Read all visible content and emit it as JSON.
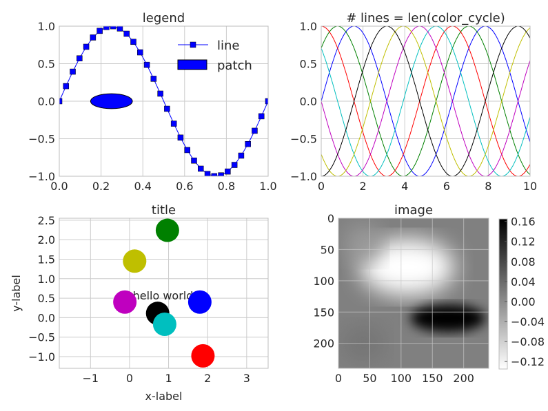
{
  "chart_data": [
    {
      "type": "line",
      "title": "legend",
      "xlim": [
        0,
        1
      ],
      "ylim": [
        -1,
        1
      ],
      "x_ticks": [
        "0.0",
        "0.2",
        "0.4",
        "0.6",
        "0.8",
        "1.0"
      ],
      "y_ticks": [
        "1.0",
        "0.5",
        "0.0",
        "−0.5",
        "−1.0"
      ],
      "grid": true,
      "legend": {
        "position": "top-right",
        "entries": [
          "line",
          "patch"
        ]
      },
      "series": [
        {
          "name": "line",
          "color": "#0000ff",
          "marker": "square",
          "x": [
            0,
            0.0323,
            0.0645,
            0.0968,
            0.129,
            0.1613,
            0.1935,
            0.2258,
            0.2581,
            0.2903,
            0.3226,
            0.3548,
            0.3871,
            0.4194,
            0.4516,
            0.4839,
            0.5161,
            0.5484,
            0.5806,
            0.6129,
            0.6452,
            0.6774,
            0.7097,
            0.7419,
            0.7742,
            0.8065,
            0.8387,
            0.871,
            0.9032,
            0.9355,
            0.9677,
            1.0
          ],
          "y": [
            0,
            0.201,
            0.394,
            0.571,
            0.725,
            0.849,
            0.937,
            0.988,
            0.999,
            0.969,
            0.899,
            0.791,
            0.651,
            0.485,
            0.299,
            0.101,
            -0.101,
            -0.299,
            -0.485,
            -0.651,
            -0.791,
            -0.899,
            -0.969,
            -0.999,
            -0.988,
            -0.937,
            -0.849,
            -0.725,
            -0.571,
            -0.394,
            -0.201,
            0
          ]
        }
      ],
      "patch": {
        "name": "patch",
        "shape": "ellipse",
        "center": [
          0.25,
          0
        ],
        "width": 0.2,
        "height": 0.2,
        "color": "#0000ff"
      }
    },
    {
      "type": "line",
      "title": "# lines = len(color_cycle)",
      "xlim": [
        0,
        10
      ],
      "ylim": [
        -1,
        1
      ],
      "x_ticks": [
        "0",
        "2",
        "4",
        "6",
        "8",
        "10"
      ],
      "y_ticks": [
        "1.0",
        "0.5",
        "0.0",
        "−0.5",
        "−1.0"
      ],
      "grid": true,
      "function": "sin(x + phase)",
      "series": [
        {
          "color": "#0000ff",
          "phase": 0.0
        },
        {
          "color": "#008000",
          "phase": 0.7854
        },
        {
          "color": "#ff0000",
          "phase": 1.5708
        },
        {
          "color": "#00bfbf",
          "phase": 2.3562
        },
        {
          "color": "#bf00bf",
          "phase": 3.1416
        },
        {
          "color": "#bfbf00",
          "phase": 3.927
        },
        {
          "color": "#000000",
          "phase": 4.7124
        }
      ]
    },
    {
      "type": "scatter",
      "title": "title",
      "xlabel": "x-label",
      "ylabel": "y-label",
      "xlim": [
        -1.8,
        3.55
      ],
      "ylim": [
        -1.3,
        2.55
      ],
      "x_ticks": [
        "−1",
        "0",
        "1",
        "2",
        "3"
      ],
      "y_ticks": [
        "2.5",
        "2.0",
        "1.5",
        "1.0",
        "0.5",
        "0.0",
        "−0.5",
        "−1.0"
      ],
      "grid": true,
      "annotation": {
        "text": "hello world",
        "x": 1.0,
        "y": 0.5
      },
      "points": [
        {
          "x": 0.97,
          "y": 2.24,
          "color": "#008000"
        },
        {
          "x": 0.13,
          "y": 1.45,
          "color": "#bfbf00"
        },
        {
          "x": -0.12,
          "y": 0.4,
          "color": "#bf00bf"
        },
        {
          "x": 1.8,
          "y": 0.4,
          "color": "#0000ff"
        },
        {
          "x": 0.72,
          "y": 0.11,
          "color": "#000000"
        },
        {
          "x": 0.9,
          "y": -0.17,
          "color": "#00bfbf"
        },
        {
          "x": 1.88,
          "y": -0.98,
          "color": "#ff0000"
        }
      ]
    },
    {
      "type": "heatmap",
      "title": "image",
      "cmap": "gray_r",
      "xlim": [
        0,
        240
      ],
      "ylim": [
        240,
        0
      ],
      "x_ticks": [
        "0",
        "50",
        "100",
        "150",
        "200"
      ],
      "y_ticks": [
        "0",
        "50",
        "100",
        "150",
        "200"
      ],
      "grid": true,
      "clim": [
        -0.135,
        0.165
      ],
      "colorbar_ticks": [
        "0.16",
        "0.12",
        "0.08",
        "0.04",
        "0.00",
        "−0.04",
        "−0.08",
        "−0.12"
      ],
      "features": [
        {
          "kind": "peak",
          "x": 180,
          "y": 160,
          "value": 0.165
        },
        {
          "kind": "trough",
          "x": 115,
          "y": 80,
          "value": -0.135
        }
      ]
    }
  ]
}
